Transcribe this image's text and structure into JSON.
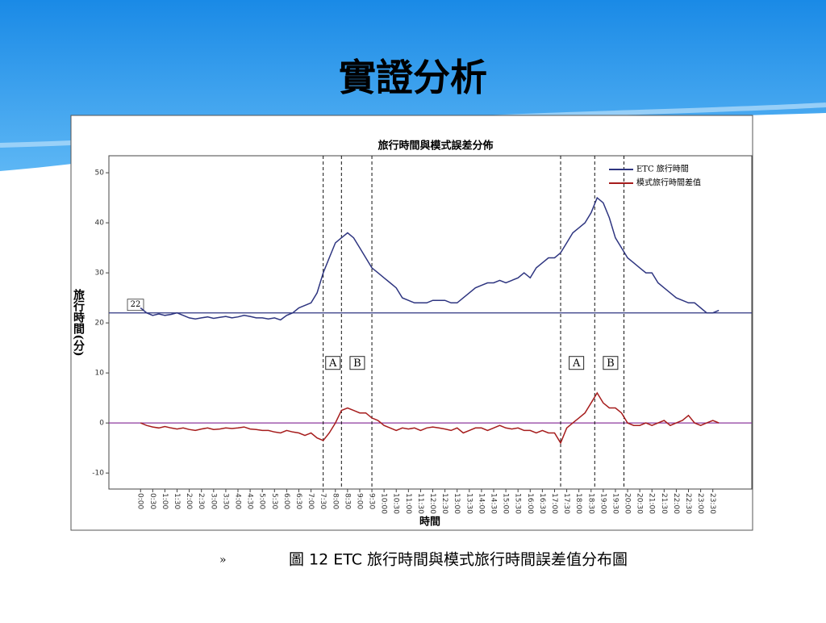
{
  "slide": {
    "title": "實證分析",
    "bullet": "»",
    "caption": "圖 12 ETC 旅行時間與模式旅行時間誤差值分布圖"
  },
  "chart_data": {
    "type": "line",
    "title": "旅行時間與模式誤差分佈",
    "x_label": "時間",
    "y_label": "旅行時間(分)",
    "legend": "upper right",
    "x": [
      0,
      0.25,
      0.5,
      0.75,
      1,
      1.25,
      1.5,
      1.75,
      2,
      2.25,
      2.5,
      2.75,
      3,
      3.25,
      3.5,
      3.75,
      4,
      4.25,
      4.5,
      4.75,
      5,
      5.25,
      5.5,
      5.75,
      6,
      6.25,
      6.5,
      6.75,
      7,
      7.25,
      7.5,
      7.75,
      8,
      8.25,
      8.5,
      8.75,
      9,
      9.25,
      9.5,
      9.75,
      10,
      10.25,
      10.5,
      10.75,
      11,
      11.25,
      11.5,
      11.75,
      12,
      12.25,
      12.5,
      12.75,
      13,
      13.25,
      13.5,
      13.75,
      14,
      14.25,
      14.5,
      14.75,
      15,
      15.25,
      15.5,
      15.75,
      16,
      16.25,
      16.5,
      16.75,
      17,
      17.25,
      17.5,
      17.75,
      18,
      18.25,
      18.5,
      18.75,
      19,
      19.25,
      19.5,
      19.75,
      20,
      20.25,
      20.5,
      20.75,
      21,
      21.25,
      21.5,
      21.75,
      22,
      22.25,
      22.5,
      22.75,
      23,
      23.25,
      23.5,
      23.75
    ],
    "series": [
      {
        "name": "ETC 旅行時間",
        "color": "#2e3580",
        "values": [
          23,
          22,
          21.5,
          21.8,
          21.5,
          21.7,
          22,
          21.5,
          21,
          20.8,
          21,
          21.2,
          20.9,
          21.1,
          21.3,
          21,
          21.2,
          21.5,
          21.3,
          21,
          21,
          20.8,
          21,
          20.6,
          21.5,
          22,
          23,
          23.5,
          24,
          26,
          30,
          33,
          36,
          37,
          38,
          37,
          35,
          33,
          31,
          30,
          29,
          28,
          27,
          25,
          24.5,
          24,
          24,
          24,
          24.5,
          24.5,
          24.5,
          24,
          24,
          25,
          26,
          27,
          27.5,
          28,
          28,
          28.5,
          28,
          28.5,
          29,
          30,
          29,
          31,
          32,
          33,
          33,
          34,
          36,
          38,
          39,
          40,
          42,
          45,
          44,
          41,
          37,
          35,
          33,
          32,
          31,
          30,
          30,
          28,
          27,
          26,
          25,
          24.5,
          24,
          24,
          23,
          22,
          22,
          22.5
        ]
      },
      {
        "name": "模式旅行時間差值",
        "color": "#a61c1c",
        "values": [
          0,
          -0.5,
          -0.8,
          -1,
          -0.7,
          -1,
          -1.2,
          -1,
          -1.3,
          -1.5,
          -1.2,
          -1,
          -1.3,
          -1.2,
          -1,
          -1.1,
          -1,
          -0.8,
          -1.2,
          -1.3,
          -1.5,
          -1.5,
          -1.8,
          -2,
          -1.5,
          -1.8,
          -2,
          -2.5,
          -2,
          -3,
          -3.5,
          -2,
          0,
          2.5,
          3,
          2.5,
          2,
          2,
          1,
          0.5,
          -0.5,
          -1,
          -1.5,
          -1,
          -1.2,
          -1,
          -1.5,
          -1,
          -0.8,
          -1,
          -1.2,
          -1.5,
          -1,
          -2,
          -1.5,
          -1,
          -1,
          -1.5,
          -1,
          -0.5,
          -1,
          -1.2,
          -1,
          -1.5,
          -1.5,
          -2,
          -1.5,
          -2,
          -2,
          -4,
          -1,
          0,
          1,
          2,
          4,
          6,
          4,
          3,
          3,
          2,
          0,
          -0.5,
          -0.5,
          0,
          -0.5,
          0,
          0.5,
          -0.5,
          0,
          0.5,
          1.5,
          0,
          -0.5,
          0,
          0.5,
          0
        ]
      }
    ],
    "reference_lines": [
      {
        "value": 22,
        "color": "#2e3580",
        "labeled": true
      },
      {
        "value": 0,
        "color": "#8e3a9e",
        "labeled": false
      }
    ],
    "vlines": [
      7.5,
      8.25,
      9.5,
      17.25,
      18.65,
      19.85
    ],
    "annotations": [
      {
        "text": "A",
        "x": 7.9,
        "y": 12
      },
      {
        "text": "B",
        "x": 8.9,
        "y": 12
      },
      {
        "text": "A",
        "x": 17.9,
        "y": 12
      },
      {
        "text": "B",
        "x": 19.3,
        "y": 12
      }
    ],
    "xlim": [
      -1.3,
      25.1
    ],
    "ylim": [
      -13.2,
      53.4
    ],
    "yticks": [
      -10,
      0,
      10,
      20,
      30,
      40,
      50
    ],
    "xticks": [
      {
        "value": 0,
        "label": "0:00"
      },
      {
        "value": 0.5,
        "label": "0:30"
      },
      {
        "value": 1,
        "label": "1:00"
      },
      {
        "value": 1.5,
        "label": "1:30"
      },
      {
        "value": 2,
        "label": "2:00"
      },
      {
        "value": 2.5,
        "label": "2:30"
      },
      {
        "value": 3,
        "label": "3:00"
      },
      {
        "value": 3.5,
        "label": "3:30"
      },
      {
        "value": 4,
        "label": "4:00"
      },
      {
        "value": 4.5,
        "label": "4:30"
      },
      {
        "value": 5,
        "label": "5:00"
      },
      {
        "value": 5.5,
        "label": "5:30"
      },
      {
        "value": 6,
        "label": "6:00"
      },
      {
        "value": 6.5,
        "label": "6:30"
      },
      {
        "value": 7,
        "label": "7:00"
      },
      {
        "value": 7.5,
        "label": "7:30"
      },
      {
        "value": 8,
        "label": "8:00"
      },
      {
        "value": 8.5,
        "label": "8:30"
      },
      {
        "value": 9,
        "label": "9:00"
      },
      {
        "value": 9.5,
        "label": "9:30"
      },
      {
        "value": 10,
        "label": "10:00"
      },
      {
        "value": 10.5,
        "label": "10:30"
      },
      {
        "value": 11,
        "label": "11:00"
      },
      {
        "value": 11.5,
        "label": "11:30"
      },
      {
        "value": 12,
        "label": "12:00"
      },
      {
        "value": 12.5,
        "label": "12:30"
      },
      {
        "value": 13,
        "label": "13:00"
      },
      {
        "value": 13.5,
        "label": "13:30"
      },
      {
        "value": 14,
        "label": "14:00"
      },
      {
        "value": 14.5,
        "label": "14:30"
      },
      {
        "value": 15,
        "label": "15:00"
      },
      {
        "value": 15.5,
        "label": "15:30"
      },
      {
        "value": 16,
        "label": "16:00"
      },
      {
        "value": 16.5,
        "label": "16:30"
      },
      {
        "value": 17,
        "label": "17:00"
      },
      {
        "value": 17.5,
        "label": "17:30"
      },
      {
        "value": 18,
        "label": "18:00"
      },
      {
        "value": 18.5,
        "label": "18:30"
      },
      {
        "value": 19,
        "label": "19:00"
      },
      {
        "value": 19.5,
        "label": "19:30"
      },
      {
        "value": 20,
        "label": "20:00"
      },
      {
        "value": 20.5,
        "label": "20:30"
      },
      {
        "value": 21,
        "label": "21:00"
      },
      {
        "value": 21.5,
        "label": "21:30"
      },
      {
        "value": 22,
        "label": "22:00"
      },
      {
        "value": 22.5,
        "label": "22:30"
      },
      {
        "value": 23,
        "label": "23:00"
      },
      {
        "value": 23.5,
        "label": "23:30"
      }
    ]
  }
}
